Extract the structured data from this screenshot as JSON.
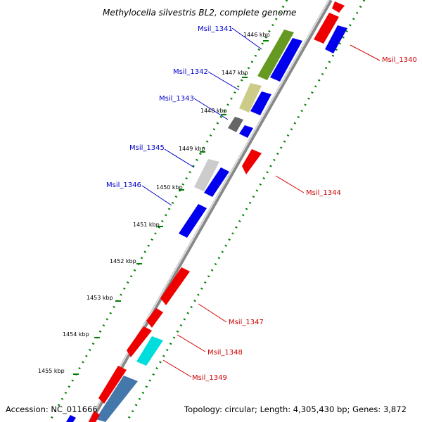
{
  "title": "Methylocella silvestris BL2, complete genome",
  "footer": {
    "accession": "Accession: NC_011666",
    "summary": "Topology: circular; Length: 4,305,430 bp; Genes: 3,872"
  },
  "colors": {
    "blue": "#0000ee",
    "red": "#ee0000",
    "label_blue": "#0000cc",
    "label_red": "#cc0000",
    "tick_green": "#008000",
    "backbone": "#777777"
  },
  "kbp_ticks": [
    "1446 kbp",
    "1447 kbp",
    "1448 kbp",
    "1449 kbp",
    "1450 kbp",
    "1451 kbp",
    "1452 kbp",
    "1453 kbp",
    "1454 kbp",
    "1455 kbp"
  ],
  "genes": [
    {
      "label": "Msil_1341",
      "color": "blue"
    },
    {
      "label": "Msil_1342",
      "color": "blue"
    },
    {
      "label": "Msil_1343",
      "color": "blue"
    },
    {
      "label": "Msil_1345",
      "color": "blue"
    },
    {
      "label": "Msil_1346",
      "color": "blue"
    },
    {
      "label": "Msil_1340",
      "color": "red"
    },
    {
      "label": "Msil_1344",
      "color": "red"
    },
    {
      "label": "Msil_1347",
      "color": "red"
    },
    {
      "label": "Msil_1348",
      "color": "red"
    },
    {
      "label": "Msil_1349",
      "color": "red"
    }
  ]
}
